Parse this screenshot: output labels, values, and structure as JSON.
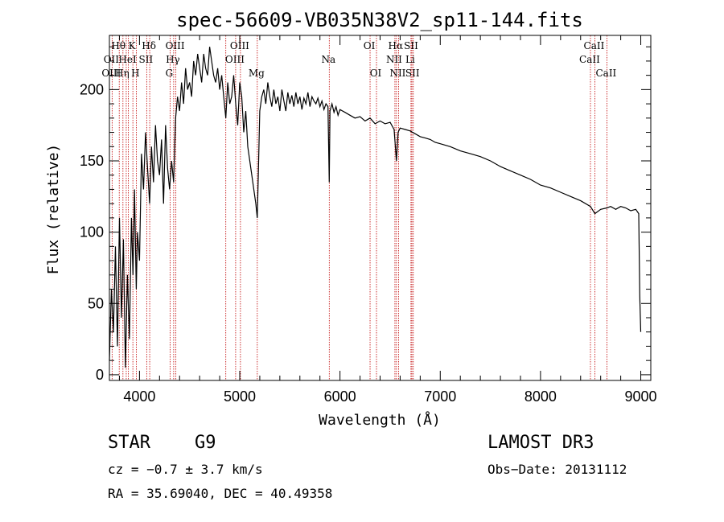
{
  "chart_data": {
    "type": "line",
    "title": "spec-56609-VB035N38V2_sp11-144.fits",
    "xlabel": "Wavelength (Å)",
    "ylabel": "Flux (relative)",
    "xlim": [
      3700,
      9100
    ],
    "ylim": [
      -4,
      238
    ],
    "xticks": [
      4000,
      5000,
      6000,
      7000,
      8000,
      9000
    ],
    "yticks": [
      0,
      50,
      100,
      150,
      200
    ],
    "x_minor_step": 200,
    "y_minor_step": 10,
    "series": [
      {
        "name": "flux",
        "x": [
          3700,
          3720,
          3740,
          3760,
          3780,
          3800,
          3820,
          3840,
          3860,
          3880,
          3900,
          3920,
          3935,
          3950,
          3968,
          3980,
          4000,
          4020,
          4040,
          4060,
          4080,
          4101,
          4120,
          4140,
          4160,
          4180,
          4200,
          4220,
          4240,
          4260,
          4280,
          4300,
          4320,
          4340,
          4360,
          4380,
          4400,
          4420,
          4440,
          4460,
          4480,
          4500,
          4520,
          4540,
          4560,
          4580,
          4600,
          4620,
          4640,
          4660,
          4680,
          4700,
          4720,
          4740,
          4760,
          4780,
          4800,
          4820,
          4840,
          4861,
          4880,
          4900,
          4920,
          4940,
          4960,
          4980,
          5000,
          5020,
          5040,
          5060,
          5080,
          5100,
          5120,
          5140,
          5160,
          5175,
          5185,
          5200,
          5220,
          5240,
          5260,
          5280,
          5300,
          5320,
          5340,
          5360,
          5380,
          5400,
          5420,
          5440,
          5460,
          5480,
          5500,
          5520,
          5540,
          5560,
          5580,
          5600,
          5620,
          5640,
          5660,
          5680,
          5700,
          5720,
          5740,
          5760,
          5780,
          5800,
          5820,
          5840,
          5860,
          5880,
          5893,
          5900,
          5920,
          5940,
          5960,
          5980,
          6000,
          6050,
          6100,
          6150,
          6200,
          6250,
          6300,
          6350,
          6400,
          6450,
          6500,
          6540,
          6563,
          6580,
          6600,
          6650,
          6700,
          6750,
          6800,
          6850,
          6900,
          6950,
          7000,
          7100,
          7200,
          7300,
          7400,
          7500,
          7600,
          7700,
          7800,
          7900,
          8000,
          8100,
          8200,
          8300,
          8400,
          8498,
          8542,
          8600,
          8662,
          8700,
          8750,
          8800,
          8850,
          8900,
          8950,
          8980,
          8990,
          9000
        ],
        "y": [
          10,
          60,
          30,
          90,
          20,
          110,
          40,
          95,
          5,
          70,
          25,
          110,
          70,
          130,
          60,
          100,
          80,
          155,
          130,
          170,
          145,
          120,
          160,
          135,
          175,
          150,
          140,
          165,
          120,
          175,
          145,
          130,
          150,
          135,
          180,
          195,
          185,
          205,
          190,
          215,
          200,
          205,
          195,
          220,
          210,
          225,
          215,
          205,
          225,
          215,
          210,
          230,
          220,
          210,
          205,
          215,
          200,
          210,
          195,
          180,
          205,
          190,
          195,
          210,
          190,
          175,
          205,
          195,
          170,
          185,
          160,
          150,
          140,
          130,
          120,
          110,
          140,
          185,
          195,
          200,
          190,
          205,
          195,
          188,
          200,
          190,
          195,
          185,
          200,
          192,
          185,
          198,
          190,
          196,
          188,
          198,
          190,
          195,
          186,
          194,
          190,
          198,
          188,
          195,
          192,
          190,
          194,
          188,
          192,
          186,
          190,
          188,
          135,
          185,
          190,
          184,
          188,
          182,
          186,
          184,
          182,
          180,
          181,
          178,
          180,
          176,
          178,
          176,
          177,
          172,
          150,
          170,
          173,
          172,
          171,
          169,
          167,
          166,
          165,
          163,
          162,
          160,
          157,
          155,
          153,
          150,
          146,
          143,
          140,
          137,
          133,
          131,
          128,
          125,
          122,
          118,
          113,
          116,
          117,
          118,
          116,
          118,
          117,
          115,
          116,
          113,
          55,
          30
        ]
      }
    ],
    "spectral_lines": [
      {
        "name": "Hθ",
        "wave": 3798,
        "row": 0
      },
      {
        "name": "OII",
        "wave": 3727,
        "row": 1
      },
      {
        "name": "OIII",
        "wave": 3727,
        "row": 2
      },
      {
        "name": "K",
        "wave": 3934,
        "row": 0
      },
      {
        "name": "HeI",
        "wave": 3889,
        "row": 1
      },
      {
        "name": "Hη",
        "wave": 3835,
        "row": 2
      },
      {
        "name": "SII",
        "wave": 4072,
        "row": 1
      },
      {
        "name": "H",
        "wave": 3968,
        "row": 2
      },
      {
        "name": "Hδ",
        "wave": 4102,
        "row": 0
      },
      {
        "name": "OIII",
        "wave": 4363,
        "row": 0
      },
      {
        "name": "Hγ",
        "wave": 4341,
        "row": 1
      },
      {
        "name": "G",
        "wave": 4305,
        "row": 2
      },
      {
        "name": "OIII",
        "wave": 5007,
        "row": 0
      },
      {
        "name": "OIII",
        "wave": 4959,
        "row": 1
      },
      {
        "name": "Mg",
        "wave": 5175,
        "row": 2
      },
      {
        "name": "Na",
        "wave": 5893,
        "row": 1
      },
      {
        "name": "OI",
        "wave": 6300,
        "row": 0
      },
      {
        "name": "OI",
        "wave": 6364,
        "row": 2
      },
      {
        "name": "Hα",
        "wave": 6563,
        "row": 0
      },
      {
        "name": "SII",
        "wave": 6717,
        "row": 0
      },
      {
        "name": "NII",
        "wave": 6548,
        "row": 1
      },
      {
        "name": "Li",
        "wave": 6708,
        "row": 1
      },
      {
        "name": "NII",
        "wave": 6584,
        "row": 2
      },
      {
        "name": "SII",
        "wave": 6731,
        "row": 2
      },
      {
        "name": "CaII",
        "wave": 8542,
        "row": 0
      },
      {
        "name": "CaII",
        "wave": 8498,
        "row": 1
      },
      {
        "name": "CaII",
        "wave": 8662,
        "row": 2
      }
    ],
    "marker_waves": [
      3727,
      3798,
      3835,
      3868,
      3889,
      3934,
      3968,
      4072,
      4102,
      4305,
      4341,
      4363,
      4861,
      4959,
      5007,
      5175,
      5893,
      6300,
      6364,
      6548,
      6563,
      6584,
      6708,
      6717,
      6731,
      8498,
      8542,
      8662
    ],
    "marker_color": "#c00000"
  },
  "info": {
    "class": "STAR",
    "subclass": "G9",
    "survey": "LAMOST DR3",
    "cz": "cz = −0.7 ± 3.7 km/s",
    "obs_date": "Obs−Date: 20131112",
    "coords": "RA =  35.69040, DEC =  40.49358"
  }
}
